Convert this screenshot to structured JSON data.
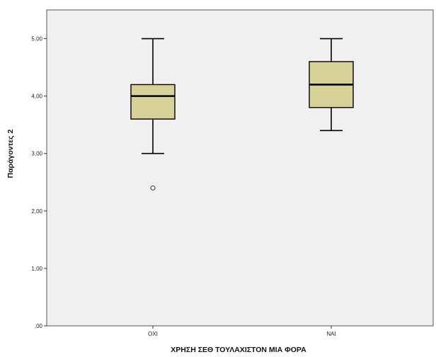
{
  "chart_data": {
    "type": "boxplot",
    "xlabel": "ΧΡΗΣΗ ΣΕΘ ΤΟΥΛΑΧΙΣΤΟΝ ΜΙΑ ΦΟΡΑ",
    "ylabel": "Παράγοντες 2",
    "ylim": [
      0,
      5.5
    ],
    "yticks": [
      0,
      1,
      2,
      3,
      4,
      5
    ],
    "ytick_labels": [
      ",00",
      "1,00",
      "2,00",
      "3,00",
      "4,00",
      "5,00"
    ],
    "categories": [
      "ΟΧΙ",
      "ΝΑΙ"
    ],
    "boxes": [
      {
        "category": "ΟΧΙ",
        "min": 3.0,
        "q1": 3.6,
        "median": 4.0,
        "q3": 4.2,
        "max": 5.0,
        "outliers": [
          2.4
        ]
      },
      {
        "category": "ΝΑΙ",
        "min": 3.4,
        "q1": 3.8,
        "median": 4.2,
        "q3": 4.6,
        "max": 5.0,
        "outliers": []
      }
    ],
    "grid": false,
    "colors": {
      "plot_background": "#f0f0f0",
      "box_fill": "#d6d29a",
      "box_stroke": "#000000",
      "outlier": "#555555",
      "frame": "#555555"
    }
  }
}
